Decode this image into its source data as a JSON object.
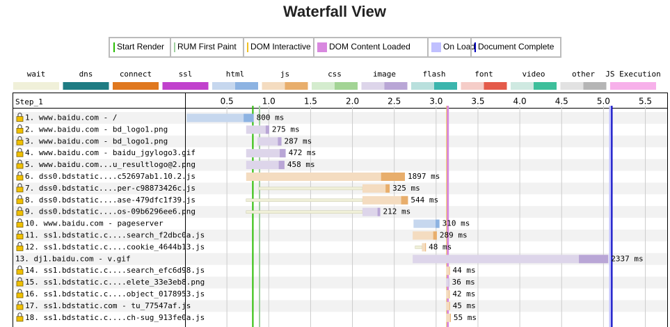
{
  "chart_data": {
    "type": "waterfall",
    "title": "Waterfall View",
    "events": [
      {
        "name": "Start Render",
        "color": "#28bc00",
        "value": 0.81
      },
      {
        "name": "RUM First Paint",
        "color": "#9fd09f",
        "value": 0.89
      },
      {
        "name": "DOM Interactive",
        "color": "#f0c020",
        "value": 3.13
      },
      {
        "name": "DOM Content Loaded",
        "color": "#d888df",
        "value": 3.14
      },
      {
        "name": "On Load",
        "color": "#c0c0ff",
        "value": 5.08
      },
      {
        "name": "Document Complete",
        "color": "#0000c0",
        "value": 5.1
      }
    ],
    "legend": [
      {
        "name": "wait",
        "colors": [
          "#f0f0d9",
          "#f0f0d9"
        ]
      },
      {
        "name": "dns",
        "colors": [
          "#1f7c83",
          "#1f7c83"
        ]
      },
      {
        "name": "connect",
        "colors": [
          "#e0781f",
          "#e0781f"
        ]
      },
      {
        "name": "ssl",
        "colors": [
          "#c141cd",
          "#c141cd"
        ]
      },
      {
        "name": "html",
        "colors": [
          "#c6d7ee",
          "#8db3e2"
        ]
      },
      {
        "name": "js",
        "colors": [
          "#f4dcc0",
          "#e8ae6c"
        ]
      },
      {
        "name": "css",
        "colors": [
          "#d4ecce",
          "#a3d495"
        ]
      },
      {
        "name": "image",
        "colors": [
          "#ddd5ea",
          "#b9a6d6"
        ]
      },
      {
        "name": "flash",
        "colors": [
          "#b9e0dd",
          "#3bb5ad"
        ]
      },
      {
        "name": "font",
        "colors": [
          "#f5cdc8",
          "#e45a4a"
        ]
      },
      {
        "name": "video",
        "colors": [
          "#cfe9e1",
          "#3dbf9b"
        ]
      },
      {
        "name": "other",
        "colors": [
          "#e2e2e2",
          "#b5b5b5"
        ]
      },
      {
        "name": "JS Execution",
        "colors": [
          "#f7b0ea",
          "#f7b0ea"
        ]
      }
    ],
    "step": "Step_1",
    "xlim": [
      0,
      5.77
    ],
    "xticks": [
      0.5,
      {
        "value": 1,
        "label": "1.0"
      },
      1.5,
      {
        "value": 2,
        "label": "2.0"
      },
      2.5,
      {
        "value": 3,
        "label": "3.0"
      },
      3.5,
      {
        "value": 4,
        "label": "4.0"
      },
      4.5,
      {
        "value": 5,
        "label": "5.0"
      },
      5.5
    ],
    "rows": [
      {
        "label": "1. www.baidu.com - /",
        "secure": true,
        "kind": "html",
        "queued": null,
        "start": 0.02,
        "duration": 0.8,
        "value_label": "800 ms"
      },
      {
        "label": "2. www.baidu.com - bd_logo1.png",
        "secure": true,
        "kind": "image",
        "queued": null,
        "start": 0.73,
        "duration": 0.275,
        "value_label": "275 ms"
      },
      {
        "label": "3. www.baidu.com - bd_logo1.png",
        "secure": true,
        "kind": "image",
        "queued": null,
        "start": 0.865,
        "duration": 0.287,
        "value_label": "287 ms"
      },
      {
        "label": "4. www.baidu.com - baidu_jgylogo3.gif",
        "secure": true,
        "kind": "image",
        "queued": null,
        "start": 0.73,
        "duration": 0.472,
        "value_label": "472 ms"
      },
      {
        "label": "5. www.baidu.com...u_resultlogo@2.png",
        "secure": true,
        "kind": "image",
        "queued": null,
        "start": 0.73,
        "duration": 0.458,
        "value_label": "458 ms"
      },
      {
        "label": "6. dss0.bdstatic....c52697ab1.10.2.js",
        "secure": true,
        "kind": "js",
        "queued": null,
        "start": 0.73,
        "duration": 1.897,
        "value_label": "1897 ms"
      },
      {
        "label": "7. dss0.bdstatic....per-c98873426c.js",
        "secure": true,
        "kind": "js",
        "queued": 0.88,
        "start": 2.12,
        "duration": 0.325,
        "value_label": "325 ms"
      },
      {
        "label": "8. dss0.bdstatic....ase-479dfc1f39.js",
        "secure": true,
        "kind": "js",
        "queued": 0.73,
        "start": 2.12,
        "duration": 0.544,
        "value_label": "544 ms"
      },
      {
        "label": "9. dss0.bdstatic....os-09b6296ee6.png",
        "secure": true,
        "kind": "image",
        "queued": 0.73,
        "start": 2.12,
        "duration": 0.212,
        "value_label": "212 ms"
      },
      {
        "label": "10. www.baidu.com - pageserver",
        "secure": true,
        "kind": "html",
        "queued": null,
        "start": 2.73,
        "duration": 0.31,
        "value_label": "310 ms"
      },
      {
        "label": "11. ss1.bdstatic.c....search_f2dbc0a.js",
        "secure": true,
        "kind": "js",
        "queued": null,
        "start": 2.72,
        "duration": 0.289,
        "value_label": "289 ms"
      },
      {
        "label": "12. ss1.bdstatic.c....cookie_4644b13.js",
        "secure": true,
        "kind": "js",
        "queued": 2.75,
        "start": 2.83,
        "duration": 0.048,
        "value_label": "48 ms"
      },
      {
        "label": "13. dj1.baidu.com - v.gif",
        "secure": false,
        "kind": "image",
        "queued": null,
        "start": 2.72,
        "duration": 2.337,
        "value_label": "2337 ms"
      },
      {
        "label": "14. ss1.bdstatic.c....search_efc6d98.js",
        "secure": true,
        "kind": "js",
        "queued": null,
        "start": 3.12,
        "duration": 0.044,
        "value_label": "44 ms"
      },
      {
        "label": "15. ss1.bdstatic.c....elete_33e3eb8.png",
        "secure": true,
        "kind": "image",
        "queued": null,
        "start": 3.12,
        "duration": 0.036,
        "value_label": "36 ms"
      },
      {
        "label": "16. ss1.bdstatic.c....object_0178953.js",
        "secure": true,
        "kind": "js",
        "queued": null,
        "start": 3.12,
        "duration": 0.042,
        "value_label": "42 ms"
      },
      {
        "label": "17. ss1.bdstatic.com - tu_77547af.js",
        "secure": true,
        "kind": "js",
        "queued": null,
        "start": 3.12,
        "duration": 0.045,
        "value_label": "45 ms"
      },
      {
        "label": "18. ss1.bdstatic.c....ch-sug_913fe0a.js",
        "secure": true,
        "kind": "js",
        "queued": null,
        "start": 3.12,
        "duration": 0.055,
        "value_label": "55 ms"
      }
    ]
  }
}
